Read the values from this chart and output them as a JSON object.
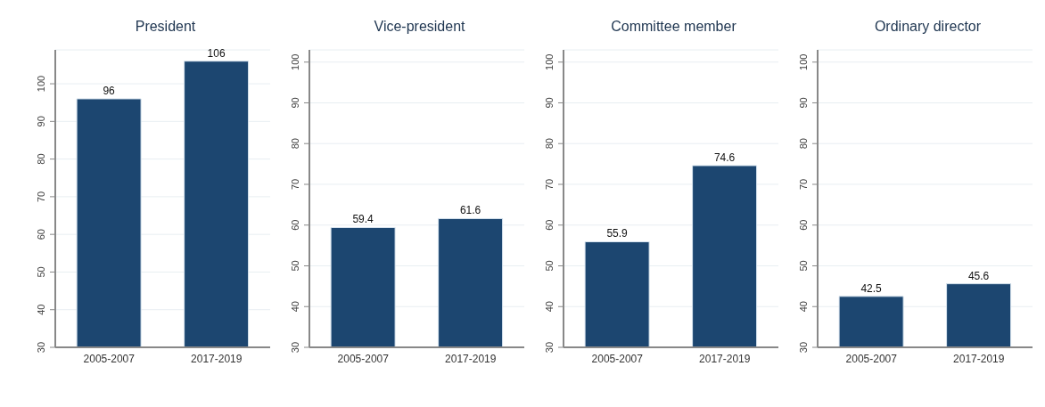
{
  "chart_data": [
    {
      "type": "bar",
      "title": "President",
      "categories": [
        "2005-2007",
        "2017-2019"
      ],
      "values": [
        96,
        106
      ],
      "color": "#1c4670",
      "ylim": [
        30,
        109
      ],
      "yticks": [
        30,
        40,
        50,
        60,
        70,
        80,
        90,
        100
      ],
      "grid": "y",
      "data_labels": true
    },
    {
      "type": "bar",
      "title": "Vice-president",
      "categories": [
        "2005-2007",
        "2017-2019"
      ],
      "values": [
        59.4,
        61.6
      ],
      "color": "#1c4670",
      "ylim": [
        30,
        103
      ],
      "yticks": [
        30,
        40,
        50,
        60,
        70,
        80,
        90,
        100
      ],
      "grid": "y",
      "data_labels": true
    },
    {
      "type": "bar",
      "title": "Committee member",
      "categories": [
        "2005-2007",
        "2017-2019"
      ],
      "values": [
        55.9,
        74.6
      ],
      "color": "#1c4670",
      "ylim": [
        30,
        103
      ],
      "yticks": [
        30,
        40,
        50,
        60,
        70,
        80,
        90,
        100
      ],
      "grid": "y",
      "data_labels": true
    },
    {
      "type": "bar",
      "title": "Ordinary director",
      "categories": [
        "2005-2007",
        "2017-2019"
      ],
      "values": [
        42.5,
        45.6
      ],
      "color": "#1c4670",
      "ylim": [
        30,
        103
      ],
      "yticks": [
        30,
        40,
        50,
        60,
        70,
        80,
        90,
        100
      ],
      "grid": "y",
      "data_labels": true
    }
  ]
}
